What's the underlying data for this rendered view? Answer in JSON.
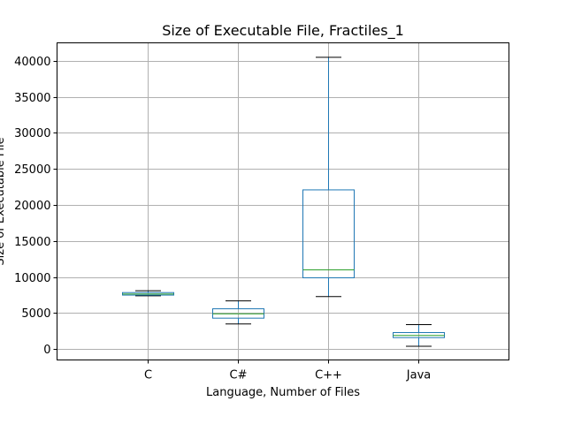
{
  "chart_data": {
    "type": "box",
    "title": "Size of Executable File, Fractiles_1",
    "xlabel": "Language, Number of Files",
    "ylabel": "Size of Executable File",
    "ylim": [
      -1500,
      42500
    ],
    "yticks": [
      0,
      5000,
      10000,
      15000,
      20000,
      25000,
      30000,
      35000,
      40000
    ],
    "grid": true,
    "colors": {
      "box": "#1f77b4",
      "median": "#2ca02c",
      "cap": "#000000",
      "grid": "#b0b0b0"
    },
    "categories": [
      "C",
      "C#",
      "C++",
      "Java"
    ],
    "boxes": [
      {
        "label": "C",
        "whislo": 7400,
        "q1": 7500,
        "med": 7650,
        "q3": 7850,
        "whishi": 8100
      },
      {
        "label": "C#",
        "whislo": 3500,
        "q1": 4300,
        "med": 4900,
        "q3": 5600,
        "whishi": 6700
      },
      {
        "label": "C++",
        "whislo": 7300,
        "q1": 9900,
        "med": 11000,
        "q3": 22100,
        "whishi": 40500
      },
      {
        "label": "Java",
        "whislo": 400,
        "q1": 1600,
        "med": 1900,
        "q3": 2300,
        "whishi": 3400
      }
    ]
  }
}
